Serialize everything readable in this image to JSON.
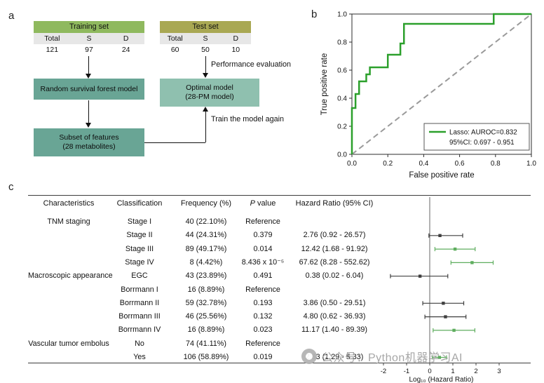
{
  "panel_a": {
    "label": "a",
    "training_table": {
      "title": "Training set",
      "columns": [
        "Total",
        "S",
        "D"
      ],
      "values": [
        "121",
        "97",
        "24"
      ]
    },
    "test_table": {
      "title": "Test set",
      "columns": [
        "Total",
        "S",
        "D"
      ],
      "values": [
        "60",
        "50",
        "10"
      ]
    },
    "boxes": {
      "rsf": "Random survival forest model",
      "optimal": [
        "Optimal model",
        "(28-PM model)"
      ],
      "subset": [
        "Subset of features",
        "(28 metabolites)"
      ]
    },
    "annotations": {
      "performance": "Performance evaluation",
      "train_again": "Train the model again"
    },
    "colors": {
      "training_header": "#8fb95e",
      "test_header": "#a9a853",
      "model_box": "#69a595",
      "optimal_box": "#8fc0af",
      "table_subheader": "#e7e7e7"
    }
  },
  "panel_b": {
    "label": "b"
  },
  "panel_c": {
    "label": "c",
    "headers": {
      "characteristics": "Characteristics",
      "classification": "Classification",
      "frequency": "Frequency (%)",
      "p_italic": "P",
      "p_rest": " value",
      "hazard": "Hazard Ratio (95% CI)"
    },
    "rows": [
      {
        "characteristic": "TNM staging",
        "classification": "Stage I",
        "frequency": "40 (22.10%)",
        "p_value": "Reference",
        "hazard_ratio": ""
      },
      {
        "characteristic": "",
        "classification": "Stage II",
        "frequency": "44 (24.31%)",
        "p_value": "0.379",
        "hazard_ratio": "2.76 (0.92 - 26.57)"
      },
      {
        "characteristic": "",
        "classification": "Stage III",
        "frequency": "89 (49.17%)",
        "p_value": "0.014",
        "hazard_ratio": "12.42 (1.68 - 91.92)"
      },
      {
        "characteristic": "",
        "classification": "Stage IV",
        "frequency": "8 (4.42%)",
        "p_value": "8.436 x 10⁻⁵",
        "hazard_ratio": "67.62 (8.28 - 552.62)"
      },
      {
        "characteristic": "Macroscopic appearance",
        "classification": "EGC",
        "frequency": "43 (23.89%)",
        "p_value": "0.491",
        "hazard_ratio": "0.38 (0.02 - 6.04)"
      },
      {
        "characteristic": "",
        "classification": "Borrmann I",
        "frequency": "16 (8.89%)",
        "p_value": "Reference",
        "hazard_ratio": ""
      },
      {
        "characteristic": "",
        "classification": "Borrmann II",
        "frequency": "59 (32.78%)",
        "p_value": "0.193",
        "hazard_ratio": "3.86 (0.50 - 29.51)"
      },
      {
        "characteristic": "",
        "classification": "Borrmann III",
        "frequency": "46 (25.56%)",
        "p_value": "0.132",
        "hazard_ratio": "4.80 (0.62 - 36.93)"
      },
      {
        "characteristic": "",
        "classification": "Borrmann IV",
        "frequency": "16 (8.89%)",
        "p_value": "0.023",
        "hazard_ratio": "11.17 (1.40 - 89.39)"
      },
      {
        "characteristic": "Vascular tumor embolus",
        "classification": "No",
        "frequency": "74 (41.11%)",
        "p_value": "Reference",
        "hazard_ratio": ""
      },
      {
        "characteristic": "",
        "classification": "Yes",
        "frequency": "106 (58.89%)",
        "p_value": "0.019",
        "hazard_ratio": "2.63 (1.29 - 5.33)"
      }
    ]
  },
  "chart_data": [
    {
      "type": "line",
      "panel": "b",
      "title": "",
      "xlabel": "False positive rate",
      "ylabel": "True positive rate",
      "xlim": [
        0.0,
        1.0
      ],
      "ylim": [
        0.0,
        1.0
      ],
      "xticks": [
        0.0,
        0.2,
        0.4,
        0.6,
        0.8,
        1.0
      ],
      "yticks": [
        0.0,
        0.2,
        0.4,
        0.6,
        0.8,
        1.0
      ],
      "grid": false,
      "series": [
        {
          "name": "Lasso ROC curve",
          "color": "#2ca02c",
          "width": 2.5,
          "dash": null,
          "x": [
            0,
            0,
            0.02,
            0.02,
            0.04,
            0.04,
            0.08,
            0.08,
            0.1,
            0.1,
            0.2,
            0.2,
            0.27,
            0.27,
            0.29,
            0.29,
            0.79,
            0.79,
            1.0
          ],
          "y": [
            0,
            0.33,
            0.33,
            0.43,
            0.43,
            0.52,
            0.52,
            0.57,
            0.57,
            0.62,
            0.62,
            0.71,
            0.71,
            0.79,
            0.79,
            0.93,
            0.93,
            1.0,
            1.0
          ]
        },
        {
          "name": "chance diagonal",
          "color": "#9a9a9a",
          "width": 2,
          "dash": "8 5",
          "x": [
            0,
            1
          ],
          "y": [
            0,
            1
          ]
        }
      ],
      "legend": {
        "lines": [
          "Lasso: AUROC=0.832",
          "95%CI: 0.697 - 0.951"
        ],
        "position": "lower right"
      }
    },
    {
      "type": "forest",
      "panel": "c",
      "xlabel": "Log₁₀ (Hazard Ratio)",
      "xlim": [
        -2,
        3
      ],
      "xticks": [
        -2,
        -1,
        0,
        1,
        2,
        3
      ],
      "zero_line": 0,
      "colors": {
        "significant": "#5fae5f",
        "nonsignificant": "#3f3f3f"
      },
      "points": [
        {
          "row": 1,
          "label": "Stage II",
          "log_hr": 0.441,
          "ci": [
            -0.036,
            1.424
          ],
          "significant": false
        },
        {
          "row": 2,
          "label": "Stage III",
          "log_hr": 1.094,
          "ci": [
            0.225,
            1.963
          ],
          "significant": true
        },
        {
          "row": 3,
          "label": "Stage IV",
          "log_hr": 1.83,
          "ci": [
            0.918,
            2.742
          ],
          "significant": true
        },
        {
          "row": 4,
          "label": "EGC",
          "log_hr": -0.42,
          "ci": [
            -1.699,
            0.781
          ],
          "significant": false
        },
        {
          "row": 6,
          "label": "Borrmann II",
          "log_hr": 0.587,
          "ci": [
            -0.301,
            1.47
          ],
          "significant": false
        },
        {
          "row": 7,
          "label": "Borrmann III",
          "log_hr": 0.681,
          "ci": [
            -0.208,
            1.567
          ],
          "significant": false
        },
        {
          "row": 8,
          "label": "Borrmann IV",
          "log_hr": 1.048,
          "ci": [
            0.146,
            1.951
          ],
          "significant": true
        },
        {
          "row": 10,
          "label": "Yes",
          "log_hr": 0.42,
          "ci": [
            0.111,
            0.727
          ],
          "significant": true
        }
      ]
    }
  ],
  "watermark": {
    "text": "公众号：Python机器学习AI"
  }
}
